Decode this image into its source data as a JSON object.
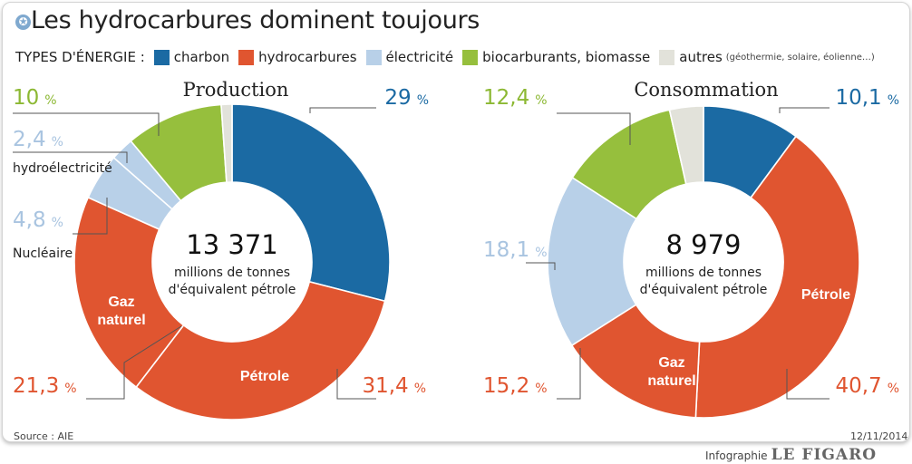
{
  "title": "Les hydrocarbures dominent toujours",
  "legend": {
    "title": "TYPES D'ÉNERGIE :",
    "items": [
      {
        "label": "charbon",
        "color": "#1b6aa3"
      },
      {
        "label": "hydrocarbures",
        "color": "#e05530"
      },
      {
        "label": "électricité",
        "color": "#b8d0e8"
      },
      {
        "label": "biocarburants, biomasse",
        "color": "#96bf3d"
      },
      {
        "label": "autres",
        "color": "#e2e2da",
        "note": "(géothermie, solaire, éolienne…)"
      }
    ]
  },
  "source": "Source : AIE",
  "date": "12/11/2014",
  "credit": {
    "label": "Infographie",
    "brand": "LE FIGARO"
  },
  "chart_data": [
    {
      "type": "pie",
      "title": "Production",
      "center_value": "13 371",
      "center_unit_line1": "millions de tonnes",
      "center_unit_line2": "d'équivalent pétrole",
      "slices": [
        {
          "name": "charbon",
          "value": 29,
          "label": "29",
          "color": "#1b6aa3"
        },
        {
          "name": "Pétrole",
          "value": 31.4,
          "label": "31,4",
          "color": "#e05530",
          "inner_label": "Pétrole"
        },
        {
          "name": "Gaz naturel",
          "value": 21.3,
          "label": "21,3",
          "color": "#e05530",
          "inner_label": "Gaz\nnaturel"
        },
        {
          "name": "Nucléaire",
          "value": 4.8,
          "label": "4,8",
          "color": "#b8d0e8",
          "caption": "Nucléaire"
        },
        {
          "name": "hydroélectricité",
          "value": 2.4,
          "label": "2,4",
          "color": "#b8d0e8",
          "caption": "hydroélectricité"
        },
        {
          "name": "biocarburants, biomasse",
          "value": 10,
          "label": "10",
          "color": "#96bf3d"
        },
        {
          "name": "autres",
          "value": 1.1,
          "label": "",
          "color": "#e2e2da"
        }
      ]
    },
    {
      "type": "pie",
      "title": "Consommation",
      "center_value": "8 979",
      "center_unit_line1": "millions de tonnes",
      "center_unit_line2": "d'équivalent pétrole",
      "slices": [
        {
          "name": "charbon",
          "value": 10.1,
          "label": "10,1",
          "color": "#1b6aa3"
        },
        {
          "name": "Pétrole",
          "value": 40.7,
          "label": "40,7",
          "color": "#e05530",
          "inner_label": "Pétrole"
        },
        {
          "name": "Gaz naturel",
          "value": 15.2,
          "label": "15,2",
          "color": "#e05530",
          "inner_label": "Gaz\nnaturel"
        },
        {
          "name": "électricité",
          "value": 18.1,
          "label": "18,1",
          "color": "#b8d0e8"
        },
        {
          "name": "biocarburants, biomasse",
          "value": 12.4,
          "label": "12,4",
          "color": "#96bf3d"
        },
        {
          "name": "autres",
          "value": 3.5,
          "label": "",
          "color": "#e2e2da"
        }
      ]
    }
  ]
}
